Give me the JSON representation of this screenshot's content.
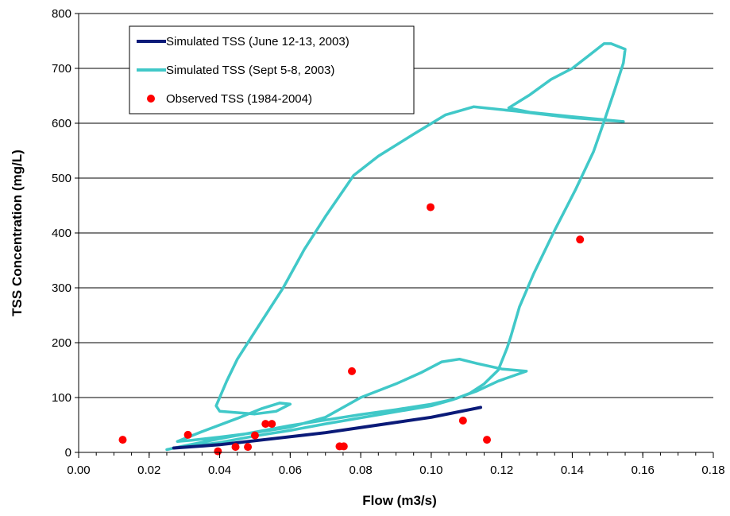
{
  "chart_data": {
    "type": "scatter",
    "xlabel": "Flow (m3/s)",
    "ylabel": "TSS Concentration (mg/L)",
    "xlim": [
      0,
      0.18
    ],
    "ylim": [
      0,
      800
    ],
    "x_ticks": [
      "0.00",
      "0.02",
      "0.04",
      "0.06",
      "0.08",
      "0.10",
      "0.12",
      "0.14",
      "0.16",
      "0.18"
    ],
    "x_tick_values": [
      0,
      0.02,
      0.04,
      0.06,
      0.08,
      0.1,
      0.12,
      0.14,
      0.16,
      0.18
    ],
    "y_ticks": [
      "0",
      "100",
      "200",
      "300",
      "400",
      "500",
      "600",
      "700",
      "800"
    ],
    "y_tick_values": [
      0,
      100,
      200,
      300,
      400,
      500,
      600,
      700,
      800
    ],
    "x_minor_step": 0.005,
    "grid": "horizontal",
    "legend_position": "top-left",
    "series": [
      {
        "name": "Simulated TSS (June 12-13, 2003)",
        "kind": "line",
        "color": "#0a1a78",
        "points": [
          [
            0.027,
            8
          ],
          [
            0.04,
            14
          ],
          [
            0.055,
            25
          ],
          [
            0.07,
            36
          ],
          [
            0.085,
            50
          ],
          [
            0.1,
            64
          ],
          [
            0.114,
            82
          ]
        ]
      },
      {
        "name": "Simulated TSS (Sept 5-8, 2003)",
        "kind": "line",
        "color": "#40c8c8",
        "points": [
          [
            0.025,
            5
          ],
          [
            0.03,
            12
          ],
          [
            0.04,
            25
          ],
          [
            0.05,
            37
          ],
          [
            0.06,
            49
          ],
          [
            0.07,
            59
          ],
          [
            0.08,
            69
          ],
          [
            0.09,
            78
          ],
          [
            0.1,
            88
          ],
          [
            0.107,
            98
          ],
          [
            0.111,
            108
          ],
          [
            0.115,
            125
          ],
          [
            0.119,
            150
          ],
          [
            0.1215,
            190
          ],
          [
            0.1225,
            210
          ],
          [
            0.125,
            265
          ],
          [
            0.129,
            325
          ],
          [
            0.135,
            405
          ],
          [
            0.141,
            480
          ],
          [
            0.146,
            548
          ],
          [
            0.149,
            603
          ],
          [
            0.152,
            660
          ],
          [
            0.1545,
            710
          ],
          [
            0.155,
            735
          ],
          [
            0.153,
            740
          ],
          [
            0.151,
            745
          ],
          [
            0.149,
            745
          ],
          [
            0.147,
            735
          ],
          [
            0.144,
            720
          ],
          [
            0.14,
            700
          ],
          [
            0.134,
            680
          ],
          [
            0.128,
            652
          ],
          [
            0.122,
            628
          ],
          [
            0.128,
            620
          ],
          [
            0.14,
            612
          ],
          [
            0.1545,
            603
          ],
          [
            0.14,
            610
          ],
          [
            0.124,
            622
          ],
          [
            0.112,
            630
          ],
          [
            0.104,
            615
          ],
          [
            0.095,
            580
          ],
          [
            0.085,
            540
          ],
          [
            0.078,
            505
          ],
          [
            0.07,
            430
          ],
          [
            0.064,
            370
          ],
          [
            0.058,
            300
          ],
          [
            0.05,
            220
          ],
          [
            0.045,
            170
          ],
          [
            0.042,
            130
          ],
          [
            0.039,
            85
          ],
          [
            0.04,
            75
          ],
          [
            0.05,
            70
          ],
          [
            0.056,
            75
          ],
          [
            0.06,
            88
          ],
          [
            0.057,
            90
          ],
          [
            0.052,
            80
          ],
          [
            0.045,
            62
          ],
          [
            0.035,
            38
          ],
          [
            0.028,
            20
          ],
          [
            0.032,
            22
          ],
          [
            0.04,
            28
          ],
          [
            0.05,
            36
          ],
          [
            0.06,
            46
          ],
          [
            0.07,
            64
          ],
          [
            0.08,
            100
          ],
          [
            0.09,
            125
          ],
          [
            0.097,
            145
          ],
          [
            0.103,
            165
          ],
          [
            0.108,
            170
          ],
          [
            0.113,
            162
          ],
          [
            0.12,
            152
          ],
          [
            0.127,
            148
          ],
          [
            0.119,
            130
          ],
          [
            0.113,
            112
          ],
          [
            0.106,
            96
          ],
          [
            0.1,
            85
          ],
          [
            0.09,
            74
          ],
          [
            0.08,
            63
          ],
          [
            0.07,
            52
          ],
          [
            0.06,
            40
          ],
          [
            0.05,
            30
          ],
          [
            0.04,
            18
          ],
          [
            0.03,
            10
          ]
        ]
      },
      {
        "name": "Observed TSS (1984-2004)",
        "kind": "scatter",
        "color": "#ff0000",
        "points": [
          [
            0.0125,
            23
          ],
          [
            0.031,
            32
          ],
          [
            0.0395,
            2
          ],
          [
            0.0445,
            10
          ],
          [
            0.048,
            10
          ],
          [
            0.05,
            31
          ],
          [
            0.053,
            52
          ],
          [
            0.0548,
            52
          ],
          [
            0.074,
            11
          ],
          [
            0.0752,
            11
          ],
          [
            0.0775,
            148
          ],
          [
            0.0998,
            447
          ],
          [
            0.109,
            58
          ],
          [
            0.1158,
            23
          ],
          [
            0.1422,
            388
          ]
        ]
      }
    ]
  }
}
